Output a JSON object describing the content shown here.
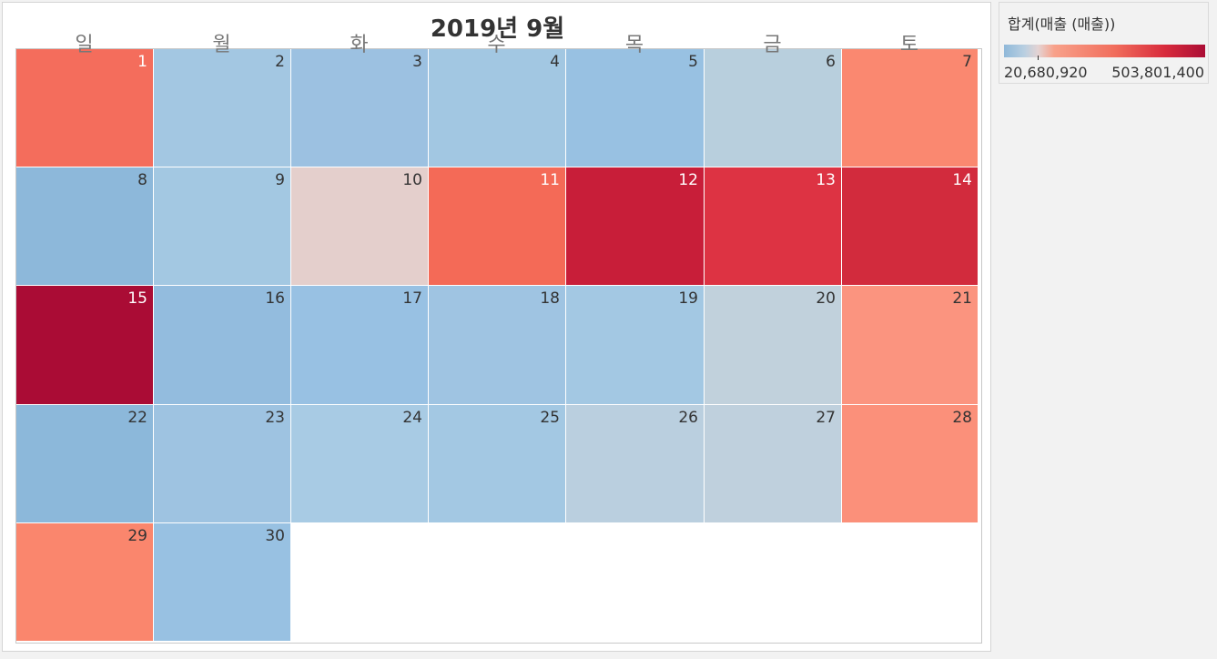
{
  "chart_data": {
    "type": "heatmap",
    "title": "2019년 9월",
    "weekdays": [
      "일",
      "월",
      "화",
      "수",
      "목",
      "금",
      "토"
    ],
    "days": [
      {
        "day": 1,
        "row": 0,
        "col": 0,
        "color": "#f46d5c",
        "text_color": "#ffffff"
      },
      {
        "day": 2,
        "row": 0,
        "col": 1,
        "color": "#a3c7e2",
        "text_color": "#333333"
      },
      {
        "day": 3,
        "row": 0,
        "col": 2,
        "color": "#9cc1e1",
        "text_color": "#333333"
      },
      {
        "day": 4,
        "row": 0,
        "col": 3,
        "color": "#a2c7e2",
        "text_color": "#333333"
      },
      {
        "day": 5,
        "row": 0,
        "col": 4,
        "color": "#98c1e2",
        "text_color": "#333333"
      },
      {
        "day": 6,
        "row": 0,
        "col": 5,
        "color": "#b8cfdd",
        "text_color": "#333333"
      },
      {
        "day": 7,
        "row": 0,
        "col": 6,
        "color": "#fa8870",
        "text_color": "#333333"
      },
      {
        "day": 8,
        "row": 1,
        "col": 0,
        "color": "#8db8da",
        "text_color": "#333333"
      },
      {
        "day": 9,
        "row": 1,
        "col": 1,
        "color": "#a3c8e2",
        "text_color": "#333333"
      },
      {
        "day": 10,
        "row": 1,
        "col": 2,
        "color": "#e4cfcc",
        "text_color": "#333333"
      },
      {
        "day": 11,
        "row": 1,
        "col": 3,
        "color": "#f46a57",
        "text_color": "#ffffff"
      },
      {
        "day": 12,
        "row": 1,
        "col": 4,
        "color": "#c81e39",
        "text_color": "#ffffff"
      },
      {
        "day": 13,
        "row": 1,
        "col": 5,
        "color": "#dd3343",
        "text_color": "#ffffff"
      },
      {
        "day": 14,
        "row": 1,
        "col": 6,
        "color": "#d22b3d",
        "text_color": "#ffffff"
      },
      {
        "day": 15,
        "row": 2,
        "col": 0,
        "color": "#aa0c35",
        "text_color": "#ffffff"
      },
      {
        "day": 16,
        "row": 2,
        "col": 1,
        "color": "#93bcde",
        "text_color": "#333333"
      },
      {
        "day": 17,
        "row": 2,
        "col": 2,
        "color": "#98c1e3",
        "text_color": "#333333"
      },
      {
        "day": 18,
        "row": 2,
        "col": 3,
        "color": "#9fc4e2",
        "text_color": "#333333"
      },
      {
        "day": 19,
        "row": 2,
        "col": 4,
        "color": "#a3c8e3",
        "text_color": "#333333"
      },
      {
        "day": 20,
        "row": 2,
        "col": 5,
        "color": "#c1d1dc",
        "text_color": "#333333"
      },
      {
        "day": 21,
        "row": 2,
        "col": 6,
        "color": "#fb947f",
        "text_color": "#333333"
      },
      {
        "day": 22,
        "row": 3,
        "col": 0,
        "color": "#8cb8da",
        "text_color": "#333333"
      },
      {
        "day": 23,
        "row": 3,
        "col": 1,
        "color": "#9ec3e1",
        "text_color": "#333333"
      },
      {
        "day": 24,
        "row": 3,
        "col": 2,
        "color": "#a8cbe4",
        "text_color": "#333333"
      },
      {
        "day": 25,
        "row": 3,
        "col": 3,
        "color": "#a3c8e3",
        "text_color": "#333333"
      },
      {
        "day": 26,
        "row": 3,
        "col": 4,
        "color": "#bacfdf",
        "text_color": "#333333"
      },
      {
        "day": 27,
        "row": 3,
        "col": 5,
        "color": "#bfd0dd",
        "text_color": "#333333"
      },
      {
        "day": 28,
        "row": 3,
        "col": 6,
        "color": "#fb907a",
        "text_color": "#333333"
      },
      {
        "day": 29,
        "row": 4,
        "col": 0,
        "color": "#fa866d",
        "text_color": "#333333"
      },
      {
        "day": 30,
        "row": 4,
        "col": 1,
        "color": "#98c1e2",
        "text_color": "#333333"
      }
    ],
    "legend": {
      "title": "합계(매출 (매출))",
      "min": "20,680,920",
      "max": "503,801,400",
      "colors": [
        "#8fb8d9",
        "#e4d3d3",
        "#f8a18a",
        "#f16d5c",
        "#d82b3c",
        "#ab0d35"
      ]
    }
  }
}
